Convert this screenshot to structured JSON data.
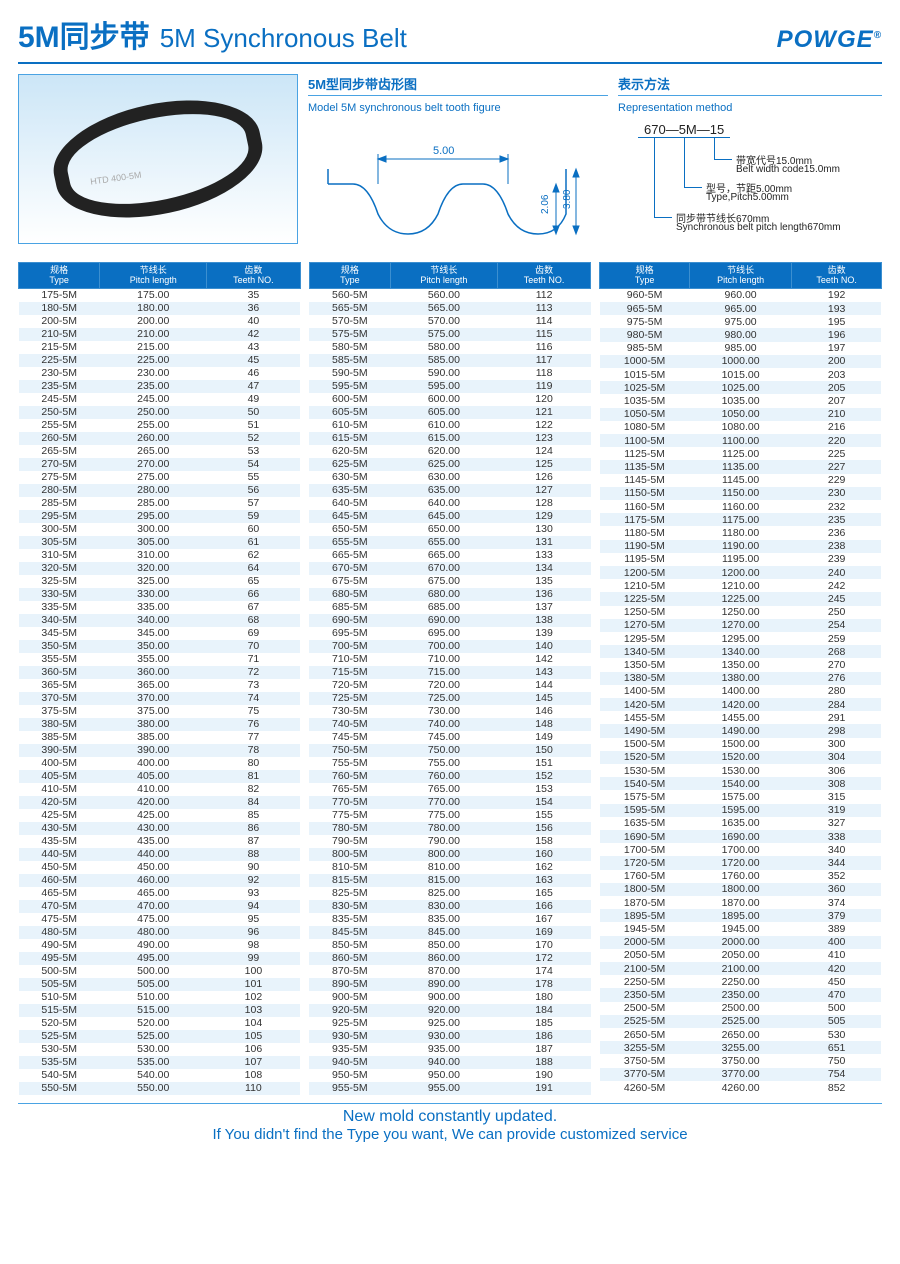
{
  "title": {
    "cn": "5M同步带",
    "en": "5M Synchronous Belt"
  },
  "brand": "POWGE",
  "brand_reg": "®",
  "panel_tooth": {
    "cn": "5M型同步带齿形图",
    "en": "Model 5M synchronous belt tooth figure",
    "dim_pitch": "5.00",
    "dim_depth": "2.06",
    "dim_height": "3.80"
  },
  "panel_rep": {
    "cn": "表示方法",
    "en": "Representation method",
    "code": "670—5M—15",
    "l1_cn": "带宽代号15.0mm",
    "l1_en": "Belt width code15.0mm",
    "l2_cn": "型号，节距5.00mm",
    "l2_en": "Type,Pitch5.00mm",
    "l3_cn": "同步带节线长670mm",
    "l3_en": "Synchronous belt pitch length670mm"
  },
  "columns": {
    "type_cn": "规格",
    "type_en": "Type",
    "pitch_cn": "节线长",
    "pitch_en": "Pitch length",
    "teeth_cn": "齿数",
    "teeth_en": "Teeth NO."
  },
  "colors": {
    "accent": "#0a6fc2",
    "row_alt": "#e8f3fb",
    "border": "#4aa3e3"
  },
  "footer": {
    "l1": "New mold constantly updated.",
    "l2": "If You didn't find the Type you want, We can provide customized service"
  },
  "table1": [
    [
      "175-5M",
      "175.00",
      "35"
    ],
    [
      "180-5M",
      "180.00",
      "36"
    ],
    [
      "200-5M",
      "200.00",
      "40"
    ],
    [
      "210-5M",
      "210.00",
      "42"
    ],
    [
      "215-5M",
      "215.00",
      "43"
    ],
    [
      "225-5M",
      "225.00",
      "45"
    ],
    [
      "230-5M",
      "230.00",
      "46"
    ],
    [
      "235-5M",
      "235.00",
      "47"
    ],
    [
      "245-5M",
      "245.00",
      "49"
    ],
    [
      "250-5M",
      "250.00",
      "50"
    ],
    [
      "255-5M",
      "255.00",
      "51"
    ],
    [
      "260-5M",
      "260.00",
      "52"
    ],
    [
      "265-5M",
      "265.00",
      "53"
    ],
    [
      "270-5M",
      "270.00",
      "54"
    ],
    [
      "275-5M",
      "275.00",
      "55"
    ],
    [
      "280-5M",
      "280.00",
      "56"
    ],
    [
      "285-5M",
      "285.00",
      "57"
    ],
    [
      "295-5M",
      "295.00",
      "59"
    ],
    [
      "300-5M",
      "300.00",
      "60"
    ],
    [
      "305-5M",
      "305.00",
      "61"
    ],
    [
      "310-5M",
      "310.00",
      "62"
    ],
    [
      "320-5M",
      "320.00",
      "64"
    ],
    [
      "325-5M",
      "325.00",
      "65"
    ],
    [
      "330-5M",
      "330.00",
      "66"
    ],
    [
      "335-5M",
      "335.00",
      "67"
    ],
    [
      "340-5M",
      "340.00",
      "68"
    ],
    [
      "345-5M",
      "345.00",
      "69"
    ],
    [
      "350-5M",
      "350.00",
      "70"
    ],
    [
      "355-5M",
      "355.00",
      "71"
    ],
    [
      "360-5M",
      "360.00",
      "72"
    ],
    [
      "365-5M",
      "365.00",
      "73"
    ],
    [
      "370-5M",
      "370.00",
      "74"
    ],
    [
      "375-5M",
      "375.00",
      "75"
    ],
    [
      "380-5M",
      "380.00",
      "76"
    ],
    [
      "385-5M",
      "385.00",
      "77"
    ],
    [
      "390-5M",
      "390.00",
      "78"
    ],
    [
      "400-5M",
      "400.00",
      "80"
    ],
    [
      "405-5M",
      "405.00",
      "81"
    ],
    [
      "410-5M",
      "410.00",
      "82"
    ],
    [
      "420-5M",
      "420.00",
      "84"
    ],
    [
      "425-5M",
      "425.00",
      "85"
    ],
    [
      "430-5M",
      "430.00",
      "86"
    ],
    [
      "435-5M",
      "435.00",
      "87"
    ],
    [
      "440-5M",
      "440.00",
      "88"
    ],
    [
      "450-5M",
      "450.00",
      "90"
    ],
    [
      "460-5M",
      "460.00",
      "92"
    ],
    [
      "465-5M",
      "465.00",
      "93"
    ],
    [
      "470-5M",
      "470.00",
      "94"
    ],
    [
      "475-5M",
      "475.00",
      "95"
    ],
    [
      "480-5M",
      "480.00",
      "96"
    ],
    [
      "490-5M",
      "490.00",
      "98"
    ],
    [
      "495-5M",
      "495.00",
      "99"
    ],
    [
      "500-5M",
      "500.00",
      "100"
    ],
    [
      "505-5M",
      "505.00",
      "101"
    ],
    [
      "510-5M",
      "510.00",
      "102"
    ],
    [
      "515-5M",
      "515.00",
      "103"
    ],
    [
      "520-5M",
      "520.00",
      "104"
    ],
    [
      "525-5M",
      "525.00",
      "105"
    ],
    [
      "530-5M",
      "530.00",
      "106"
    ],
    [
      "535-5M",
      "535.00",
      "107"
    ],
    [
      "540-5M",
      "540.00",
      "108"
    ],
    [
      "550-5M",
      "550.00",
      "110"
    ]
  ],
  "table2": [
    [
      "560-5M",
      "560.00",
      "112"
    ],
    [
      "565-5M",
      "565.00",
      "113"
    ],
    [
      "570-5M",
      "570.00",
      "114"
    ],
    [
      "575-5M",
      "575.00",
      "115"
    ],
    [
      "580-5M",
      "580.00",
      "116"
    ],
    [
      "585-5M",
      "585.00",
      "117"
    ],
    [
      "590-5M",
      "590.00",
      "118"
    ],
    [
      "595-5M",
      "595.00",
      "119"
    ],
    [
      "600-5M",
      "600.00",
      "120"
    ],
    [
      "605-5M",
      "605.00",
      "121"
    ],
    [
      "610-5M",
      "610.00",
      "122"
    ],
    [
      "615-5M",
      "615.00",
      "123"
    ],
    [
      "620-5M",
      "620.00",
      "124"
    ],
    [
      "625-5M",
      "625.00",
      "125"
    ],
    [
      "630-5M",
      "630.00",
      "126"
    ],
    [
      "635-5M",
      "635.00",
      "127"
    ],
    [
      "640-5M",
      "640.00",
      "128"
    ],
    [
      "645-5M",
      "645.00",
      "129"
    ],
    [
      "650-5M",
      "650.00",
      "130"
    ],
    [
      "655-5M",
      "655.00",
      "131"
    ],
    [
      "665-5M",
      "665.00",
      "133"
    ],
    [
      "670-5M",
      "670.00",
      "134"
    ],
    [
      "675-5M",
      "675.00",
      "135"
    ],
    [
      "680-5M",
      "680.00",
      "136"
    ],
    [
      "685-5M",
      "685.00",
      "137"
    ],
    [
      "690-5M",
      "690.00",
      "138"
    ],
    [
      "695-5M",
      "695.00",
      "139"
    ],
    [
      "700-5M",
      "700.00",
      "140"
    ],
    [
      "710-5M",
      "710.00",
      "142"
    ],
    [
      "715-5M",
      "715.00",
      "143"
    ],
    [
      "720-5M",
      "720.00",
      "144"
    ],
    [
      "725-5M",
      "725.00",
      "145"
    ],
    [
      "730-5M",
      "730.00",
      "146"
    ],
    [
      "740-5M",
      "740.00",
      "148"
    ],
    [
      "745-5M",
      "745.00",
      "149"
    ],
    [
      "750-5M",
      "750.00",
      "150"
    ],
    [
      "755-5M",
      "755.00",
      "151"
    ],
    [
      "760-5M",
      "760.00",
      "152"
    ],
    [
      "765-5M",
      "765.00",
      "153"
    ],
    [
      "770-5M",
      "770.00",
      "154"
    ],
    [
      "775-5M",
      "775.00",
      "155"
    ],
    [
      "780-5M",
      "780.00",
      "156"
    ],
    [
      "790-5M",
      "790.00",
      "158"
    ],
    [
      "800-5M",
      "800.00",
      "160"
    ],
    [
      "810-5M",
      "810.00",
      "162"
    ],
    [
      "815-5M",
      "815.00",
      "163"
    ],
    [
      "825-5M",
      "825.00",
      "165"
    ],
    [
      "830-5M",
      "830.00",
      "166"
    ],
    [
      "835-5M",
      "835.00",
      "167"
    ],
    [
      "845-5M",
      "845.00",
      "169"
    ],
    [
      "850-5M",
      "850.00",
      "170"
    ],
    [
      "860-5M",
      "860.00",
      "172"
    ],
    [
      "870-5M",
      "870.00",
      "174"
    ],
    [
      "890-5M",
      "890.00",
      "178"
    ],
    [
      "900-5M",
      "900.00",
      "180"
    ],
    [
      "920-5M",
      "920.00",
      "184"
    ],
    [
      "925-5M",
      "925.00",
      "185"
    ],
    [
      "930-5M",
      "930.00",
      "186"
    ],
    [
      "935-5M",
      "935.00",
      "187"
    ],
    [
      "940-5M",
      "940.00",
      "188"
    ],
    [
      "950-5M",
      "950.00",
      "190"
    ],
    [
      "955-5M",
      "955.00",
      "191"
    ]
  ],
  "table3": [
    [
      "960-5M",
      "960.00",
      "192"
    ],
    [
      "965-5M",
      "965.00",
      "193"
    ],
    [
      "975-5M",
      "975.00",
      "195"
    ],
    [
      "980-5M",
      "980.00",
      "196"
    ],
    [
      "985-5M",
      "985.00",
      "197"
    ],
    [
      "1000-5M",
      "1000.00",
      "200"
    ],
    [
      "1015-5M",
      "1015.00",
      "203"
    ],
    [
      "1025-5M",
      "1025.00",
      "205"
    ],
    [
      "1035-5M",
      "1035.00",
      "207"
    ],
    [
      "1050-5M",
      "1050.00",
      "210"
    ],
    [
      "1080-5M",
      "1080.00",
      "216"
    ],
    [
      "1100-5M",
      "1100.00",
      "220"
    ],
    [
      "1125-5M",
      "1125.00",
      "225"
    ],
    [
      "1135-5M",
      "1135.00",
      "227"
    ],
    [
      "1145-5M",
      "1145.00",
      "229"
    ],
    [
      "1150-5M",
      "1150.00",
      "230"
    ],
    [
      "1160-5M",
      "1160.00",
      "232"
    ],
    [
      "1175-5M",
      "1175.00",
      "235"
    ],
    [
      "1180-5M",
      "1180.00",
      "236"
    ],
    [
      "1190-5M",
      "1190.00",
      "238"
    ],
    [
      "1195-5M",
      "1195.00",
      "239"
    ],
    [
      "1200-5M",
      "1200.00",
      "240"
    ],
    [
      "1210-5M",
      "1210.00",
      "242"
    ],
    [
      "1225-5M",
      "1225.00",
      "245"
    ],
    [
      "1250-5M",
      "1250.00",
      "250"
    ],
    [
      "1270-5M",
      "1270.00",
      "254"
    ],
    [
      "1295-5M",
      "1295.00",
      "259"
    ],
    [
      "1340-5M",
      "1340.00",
      "268"
    ],
    [
      "1350-5M",
      "1350.00",
      "270"
    ],
    [
      "1380-5M",
      "1380.00",
      "276"
    ],
    [
      "1400-5M",
      "1400.00",
      "280"
    ],
    [
      "1420-5M",
      "1420.00",
      "284"
    ],
    [
      "1455-5M",
      "1455.00",
      "291"
    ],
    [
      "1490-5M",
      "1490.00",
      "298"
    ],
    [
      "1500-5M",
      "1500.00",
      "300"
    ],
    [
      "1520-5M",
      "1520.00",
      "304"
    ],
    [
      "1530-5M",
      "1530.00",
      "306"
    ],
    [
      "1540-5M",
      "1540.00",
      "308"
    ],
    [
      "1575-5M",
      "1575.00",
      "315"
    ],
    [
      "1595-5M",
      "1595.00",
      "319"
    ],
    [
      "1635-5M",
      "1635.00",
      "327"
    ],
    [
      "1690-5M",
      "1690.00",
      "338"
    ],
    [
      "1700-5M",
      "1700.00",
      "340"
    ],
    [
      "1720-5M",
      "1720.00",
      "344"
    ],
    [
      "1760-5M",
      "1760.00",
      "352"
    ],
    [
      "1800-5M",
      "1800.00",
      "360"
    ],
    [
      "1870-5M",
      "1870.00",
      "374"
    ],
    [
      "1895-5M",
      "1895.00",
      "379"
    ],
    [
      "1945-5M",
      "1945.00",
      "389"
    ],
    [
      "2000-5M",
      "2000.00",
      "400"
    ],
    [
      "2050-5M",
      "2050.00",
      "410"
    ],
    [
      "2100-5M",
      "2100.00",
      "420"
    ],
    [
      "2250-5M",
      "2250.00",
      "450"
    ],
    [
      "2350-5M",
      "2350.00",
      "470"
    ],
    [
      "2500-5M",
      "2500.00",
      "500"
    ],
    [
      "2525-5M",
      "2525.00",
      "505"
    ],
    [
      "2650-5M",
      "2650.00",
      "530"
    ],
    [
      "3255-5M",
      "3255.00",
      "651"
    ],
    [
      "3750-5M",
      "3750.00",
      "750"
    ],
    [
      "3770-5M",
      "3770.00",
      "754"
    ],
    [
      "4260-5M",
      "4260.00",
      "852"
    ]
  ]
}
